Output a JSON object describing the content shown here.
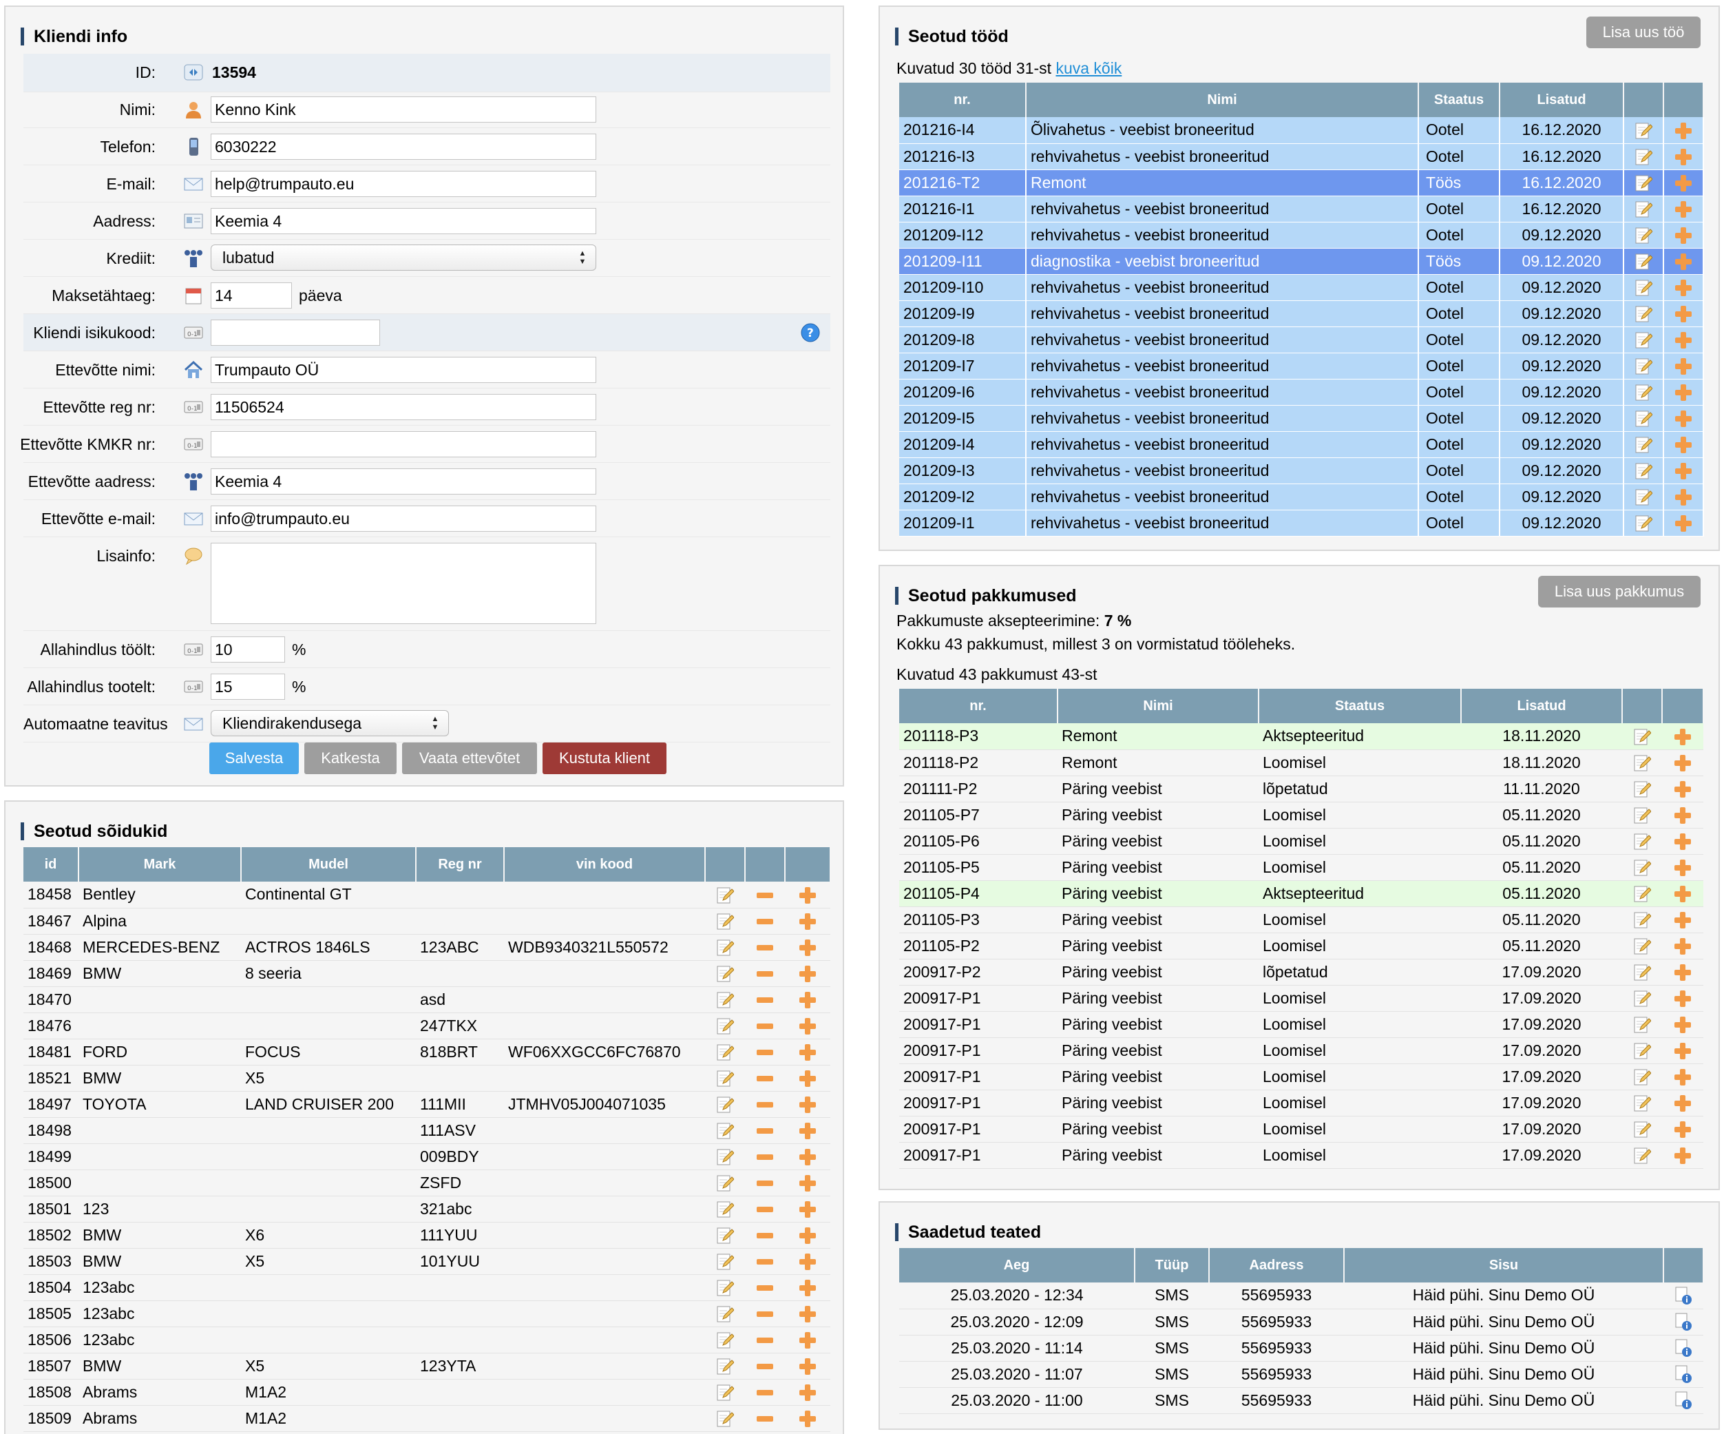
{
  "client": {
    "title": "Kliendi info",
    "id_label": "ID:",
    "id_value": "13594",
    "fields": [
      {
        "label": "Nimi:",
        "value": "Kenno Kink"
      },
      {
        "label": "Telefon:",
        "value": "6030222"
      },
      {
        "label": "E-mail:",
        "value": "help@trumpauto.eu"
      },
      {
        "label": "Aadress:",
        "value": "Keemia 4"
      },
      {
        "label": "Krediit:",
        "value": "lubatud"
      },
      {
        "label": "Maksetähtaeg:",
        "value": "14",
        "suffix": "päeva"
      },
      {
        "label": "Kliendi isikukood:",
        "value": ""
      },
      {
        "label": "Ettevõtte nimi:",
        "value": "Trumpauto OÜ"
      },
      {
        "label": "Ettevõtte reg nr:",
        "value": "11506524"
      },
      {
        "label": "Ettevõtte KMKR nr:",
        "value": ""
      },
      {
        "label": "Ettevõtte aadress:",
        "value": "Keemia 4"
      },
      {
        "label": "Ettevõtte e-mail:",
        "value": "info@trumpauto.eu"
      },
      {
        "label": "Lisainfo:",
        "value": ""
      },
      {
        "label": "Allahindlus töölt:",
        "value": "10",
        "suffix": "%"
      },
      {
        "label": "Allahindlus tootelt:",
        "value": "15",
        "suffix": "%"
      },
      {
        "label": "Automaatne teavitus",
        "value": "Kliendirakendusega"
      }
    ],
    "buttons": {
      "save": "Salvesta",
      "cancel": "Katkesta",
      "view_company": "Vaata ettevõtet",
      "delete": "Kustuta klient"
    }
  },
  "vehicles": {
    "title": "Seotud sõidukid",
    "columns": [
      "id",
      "Mark",
      "Mudel",
      "Reg nr",
      "vin kood"
    ],
    "rows": [
      [
        "18458",
        "Bentley",
        "Continental GT",
        "",
        ""
      ],
      [
        "18467",
        "Alpina",
        "",
        "",
        ""
      ],
      [
        "18468",
        "MERCEDES-BENZ",
        "ACTROS 1846LS",
        "123ABC",
        "WDB9340321L550572"
      ],
      [
        "18469",
        "BMW",
        "8 seeria",
        "",
        ""
      ],
      [
        "18470",
        "",
        "",
        "asd",
        ""
      ],
      [
        "18476",
        "",
        "",
        "247TKX",
        ""
      ],
      [
        "18481",
        "FORD",
        "FOCUS",
        "818BRT",
        "WF06XXGCC6FC76870"
      ],
      [
        "18521",
        "BMW",
        "X5",
        "",
        ""
      ],
      [
        "18497",
        "TOYOTA",
        "LAND CRUISER 200",
        "111MII",
        "JTMHV05J004071035"
      ],
      [
        "18498",
        "",
        "",
        "111ASV",
        ""
      ],
      [
        "18499",
        "",
        "",
        "009BDY",
        ""
      ],
      [
        "18500",
        "",
        "",
        "ZSFD",
        ""
      ],
      [
        "18501",
        "123",
        "",
        "321abc",
        ""
      ],
      [
        "18502",
        "BMW",
        "X6",
        "111YUU",
        ""
      ],
      [
        "18503",
        "BMW",
        "X5",
        "101YUU",
        ""
      ],
      [
        "18504",
        "123abc",
        "",
        "",
        ""
      ],
      [
        "18505",
        "123abc",
        "",
        "",
        ""
      ],
      [
        "18506",
        "123abc",
        "",
        "",
        ""
      ],
      [
        "18507",
        "BMW",
        "X5",
        "123YTA",
        ""
      ],
      [
        "18508",
        "Abrams",
        "M1A2",
        "",
        ""
      ],
      [
        "18509",
        "Abrams",
        "M1A2",
        "",
        ""
      ]
    ]
  },
  "jobs": {
    "title": "Seotud tööd",
    "add_button": "Lisa uus töö",
    "summary": "Kuvatud 30 tööd 31-st",
    "show_all": "kuva kõik",
    "columns": [
      "nr.",
      "Nimi",
      "Staatus",
      "Lisatud"
    ],
    "rows": [
      [
        "201216-I4",
        "Õlivahetus - veebist broneeritud",
        "Ootel",
        "16.12.2020",
        false
      ],
      [
        "201216-I3",
        "rehvivahetus - veebist broneeritud",
        "Ootel",
        "16.12.2020",
        false
      ],
      [
        "201216-T2",
        "Remont",
        "Töös",
        "16.12.2020",
        true
      ],
      [
        "201216-I1",
        "rehvivahetus - veebist broneeritud",
        "Ootel",
        "16.12.2020",
        false
      ],
      [
        "201209-I12",
        "rehvivahetus - veebist broneeritud",
        "Ootel",
        "09.12.2020",
        false
      ],
      [
        "201209-I11",
        "diagnostika - veebist broneeritud",
        "Töös",
        "09.12.2020",
        true
      ],
      [
        "201209-I10",
        "rehvivahetus - veebist broneeritud",
        "Ootel",
        "09.12.2020",
        false
      ],
      [
        "201209-I9",
        "rehvivahetus - veebist broneeritud",
        "Ootel",
        "09.12.2020",
        false
      ],
      [
        "201209-I8",
        "rehvivahetus - veebist broneeritud",
        "Ootel",
        "09.12.2020",
        false
      ],
      [
        "201209-I7",
        "rehvivahetus - veebist broneeritud",
        "Ootel",
        "09.12.2020",
        false
      ],
      [
        "201209-I6",
        "rehvivahetus - veebist broneeritud",
        "Ootel",
        "09.12.2020",
        false
      ],
      [
        "201209-I5",
        "rehvivahetus - veebist broneeritud",
        "Ootel",
        "09.12.2020",
        false
      ],
      [
        "201209-I4",
        "rehvivahetus - veebist broneeritud",
        "Ootel",
        "09.12.2020",
        false
      ],
      [
        "201209-I3",
        "rehvivahetus - veebist broneeritud",
        "Ootel",
        "09.12.2020",
        false
      ],
      [
        "201209-I2",
        "rehvivahetus - veebist broneeritud",
        "Ootel",
        "09.12.2020",
        false
      ],
      [
        "201209-I1",
        "rehvivahetus - veebist broneeritud",
        "Ootel",
        "09.12.2020",
        false
      ]
    ]
  },
  "offers": {
    "title": "Seotud pakkumused",
    "add_button": "Lisa uus pakkumus",
    "acceptance_label": "Pakkumuste aksepteerimine:",
    "acceptance_value": "7 %",
    "total_text": "Kokku 43 pakkumust, millest 3 on vormistatud tööleheks.",
    "shown_text": "Kuvatud 43 pakkumust 43-st",
    "columns": [
      "nr.",
      "Nimi",
      "Staatus",
      "Lisatud"
    ],
    "rows": [
      [
        "201118-P3",
        "Remont",
        "Aktsepteeritud",
        "18.11.2020",
        true
      ],
      [
        "201118-P2",
        "Remont",
        "Loomisel",
        "18.11.2020",
        false
      ],
      [
        "201111-P2",
        "Päring veebist",
        "lõpetatud",
        "11.11.2020",
        false
      ],
      [
        "201105-P7",
        "Päring veebist",
        "Loomisel",
        "05.11.2020",
        false
      ],
      [
        "201105-P6",
        "Päring veebist",
        "Loomisel",
        "05.11.2020",
        false
      ],
      [
        "201105-P5",
        "Päring veebist",
        "Loomisel",
        "05.11.2020",
        false
      ],
      [
        "201105-P4",
        "Päring veebist",
        "Aktsepteeritud",
        "05.11.2020",
        true
      ],
      [
        "201105-P3",
        "Päring veebist",
        "Loomisel",
        "05.11.2020",
        false
      ],
      [
        "201105-P2",
        "Päring veebist",
        "Loomisel",
        "05.11.2020",
        false
      ],
      [
        "200917-P2",
        "Päring veebist",
        "lõpetatud",
        "17.09.2020",
        false
      ],
      [
        "200917-P1",
        "Päring veebist",
        "Loomisel",
        "17.09.2020",
        false
      ],
      [
        "200917-P1",
        "Päring veebist",
        "Loomisel",
        "17.09.2020",
        false
      ],
      [
        "200917-P1",
        "Päring veebist",
        "Loomisel",
        "17.09.2020",
        false
      ],
      [
        "200917-P1",
        "Päring veebist",
        "Loomisel",
        "17.09.2020",
        false
      ],
      [
        "200917-P1",
        "Päring veebist",
        "Loomisel",
        "17.09.2020",
        false
      ],
      [
        "200917-P1",
        "Päring veebist",
        "Loomisel",
        "17.09.2020",
        false
      ],
      [
        "200917-P1",
        "Päring veebist",
        "Loomisel",
        "17.09.2020",
        false
      ]
    ]
  },
  "messages": {
    "title": "Saadetud teated",
    "columns": [
      "Aeg",
      "Tüüp",
      "Aadress",
      "Sisu"
    ],
    "rows": [
      [
        "25.03.2020 - 12:34",
        "SMS",
        "55695933",
        "Häid pühi. Sinu Demo OÜ"
      ],
      [
        "25.03.2020 - 12:09",
        "SMS",
        "55695933",
        "Häid pühi. Sinu Demo OÜ"
      ],
      [
        "25.03.2020 - 11:14",
        "SMS",
        "55695933",
        "Häid pühi. Sinu Demo OÜ"
      ],
      [
        "25.03.2020 - 11:07",
        "SMS",
        "55695933",
        "Häid pühi. Sinu Demo OÜ"
      ],
      [
        "25.03.2020 - 11:00",
        "SMS",
        "55695933",
        "Häid pühi. Sinu Demo OÜ"
      ]
    ]
  },
  "colors": {
    "header": "#7d9eb1",
    "job_row": "#b5d8f8",
    "job_selected": "#6e97ee",
    "offer_accepted": "#e6fbe1",
    "save": "#4aa7ea",
    "delete": "#9e3a36",
    "accent_icon": "#f39a45"
  }
}
